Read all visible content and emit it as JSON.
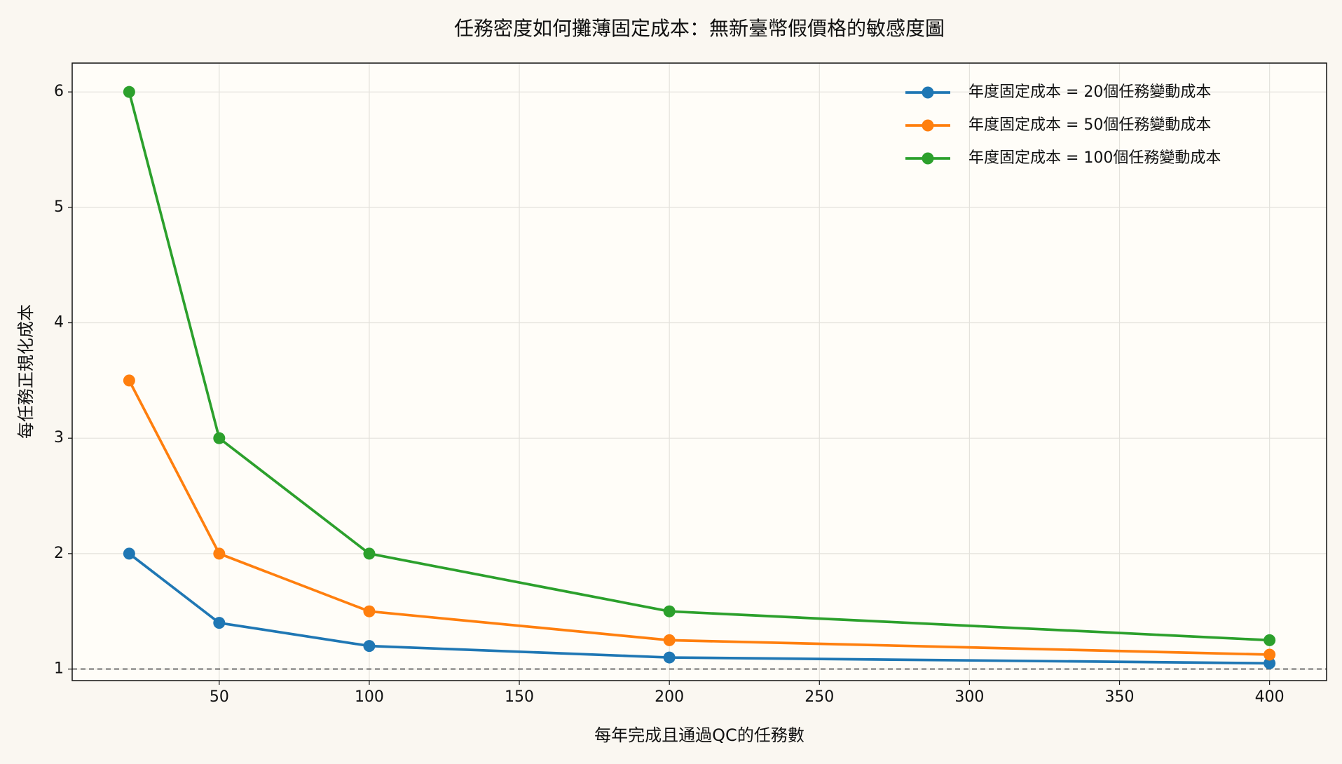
{
  "chart_data": {
    "type": "line",
    "title": "任務密度如何攤薄固定成本：無新臺幣假價格的敏感度圖",
    "x_label": "每年完成且通過QC的任務數",
    "y_label": "每任務正規化成本",
    "x": [
      20,
      50,
      100,
      200,
      400
    ],
    "series": [
      {
        "name": "年度固定成本 = 20個任務變動成本",
        "color": "#1f77b4",
        "values": [
          2,
          1.4,
          1.2,
          1.1,
          1.05
        ]
      },
      {
        "name": "年度固定成本 = 50個任務變動成本",
        "color": "#ff7f0e",
        "values": [
          3.5,
          2,
          1.5,
          1.25,
          1.125
        ]
      },
      {
        "name": "年度固定成本 = 100個任務變動成本",
        "color": "#2ca02c",
        "values": [
          6,
          3,
          2,
          1.5,
          1.25
        ]
      }
    ],
    "xlim": [
      1,
      419
    ],
    "ylim": [
      0.9,
      6.25
    ],
    "xticks": [
      50,
      100,
      150,
      200,
      250,
      300,
      350,
      400
    ],
    "yticks": [
      1,
      2,
      3,
      4,
      5,
      6
    ],
    "reference_line": 1,
    "grid": true,
    "legend": "upper right"
  }
}
